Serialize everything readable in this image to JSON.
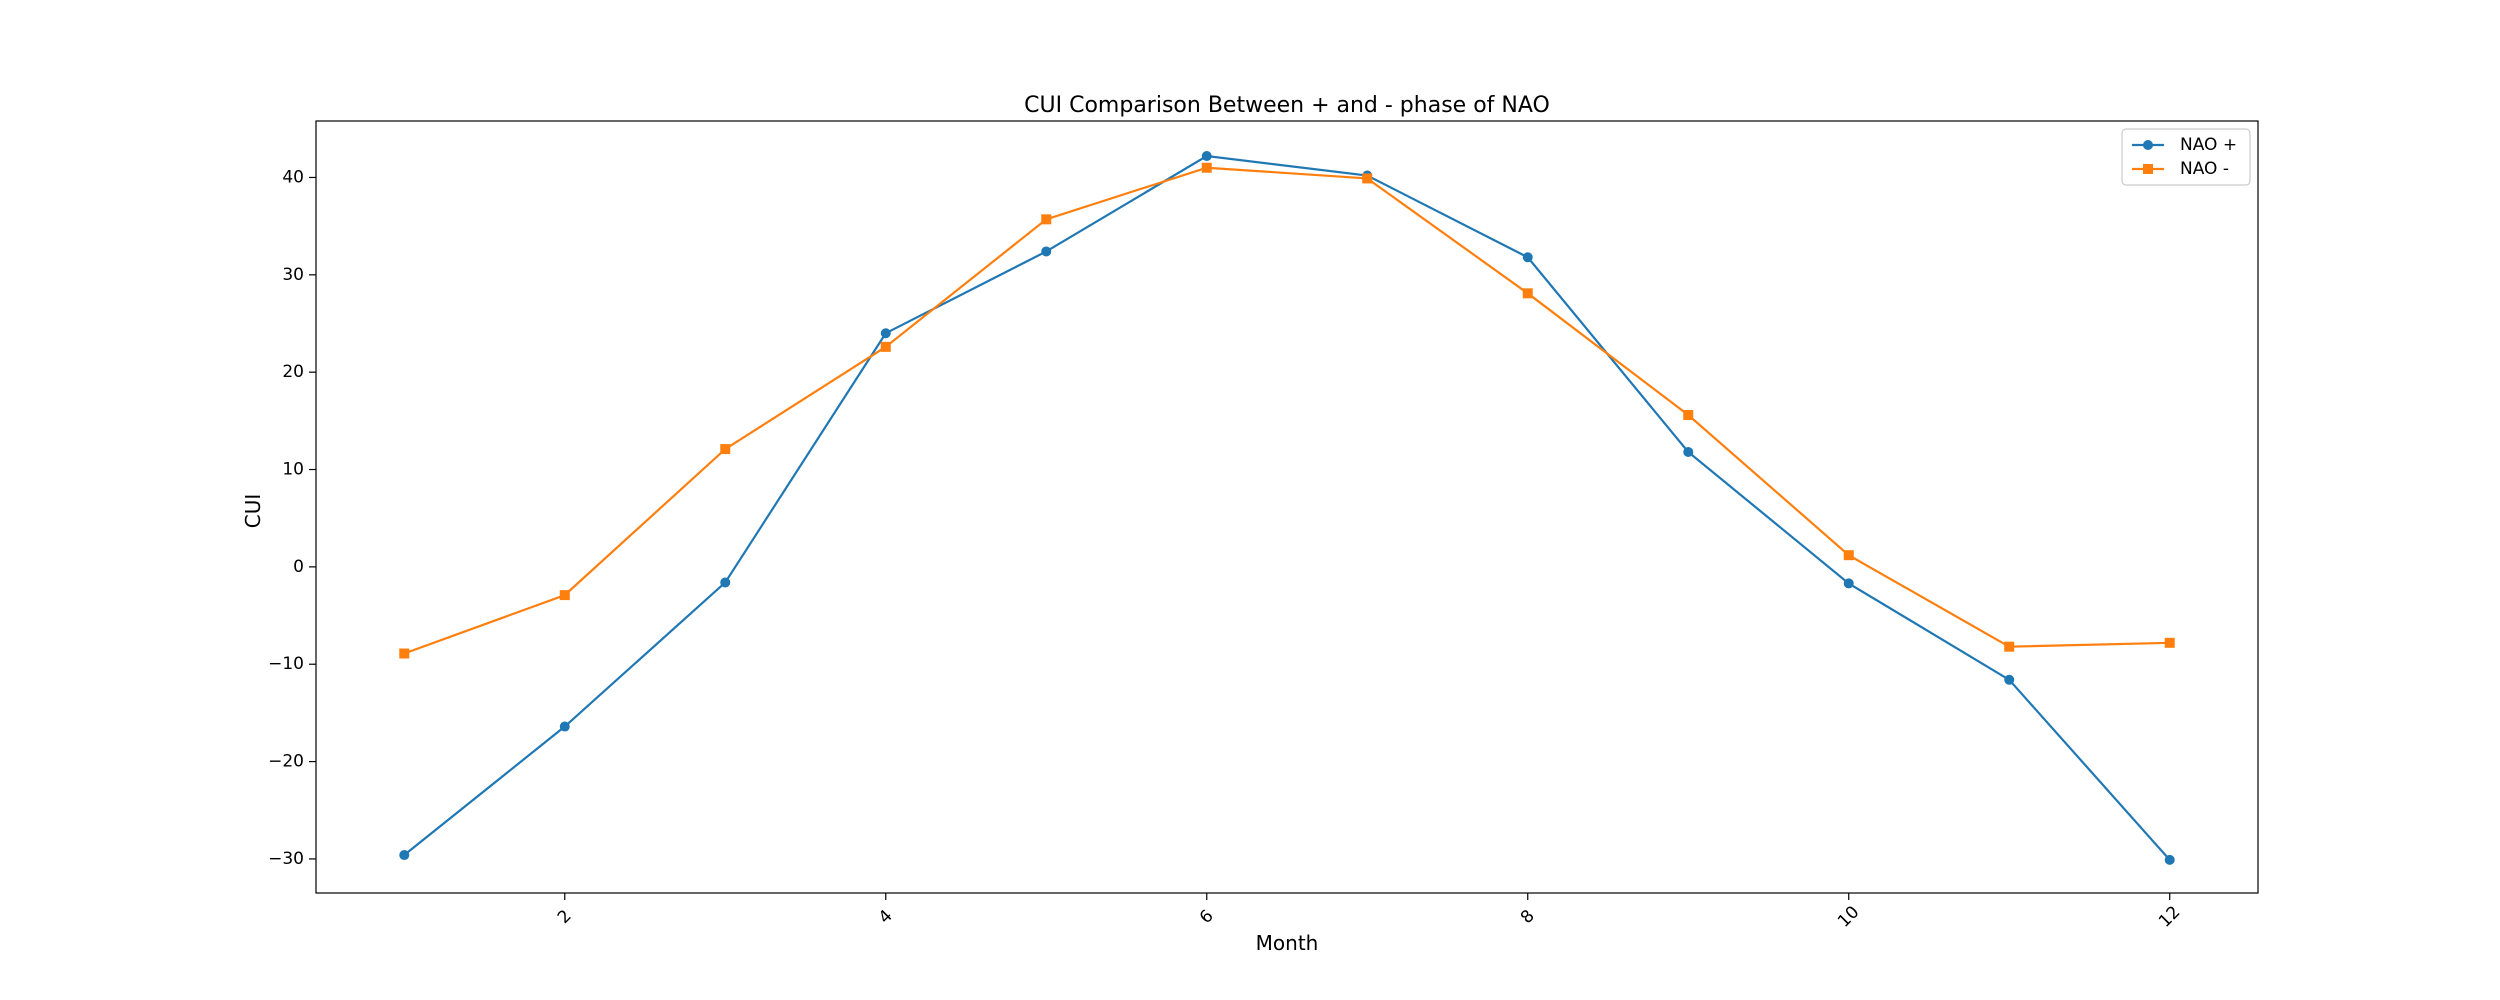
{
  "chart_data": {
    "type": "line",
    "title": "CUI Comparison Between + and - phase of NAO",
    "xlabel": "Month",
    "ylabel": "CUI",
    "x": [
      1,
      2,
      3,
      4,
      5,
      6,
      7,
      8,
      9,
      10,
      11,
      12
    ],
    "xlim": [
      0.45,
      12.55
    ],
    "ylim": [
      -33.5,
      45.8
    ],
    "xticks": [
      2,
      4,
      6,
      8,
      10,
      12
    ],
    "xtick_labels": [
      "2",
      "4",
      "6",
      "8",
      "10",
      "12"
    ],
    "xtick_rotation": -45,
    "yticks": [
      -30,
      -20,
      -10,
      0,
      10,
      20,
      30,
      40
    ],
    "ytick_labels": [
      "−30",
      "−20",
      "−10",
      "0",
      "10",
      "20",
      "30",
      "40"
    ],
    "grid": false,
    "legend_position": "top-right",
    "series": [
      {
        "name": "NAO +",
        "color": "#1f77b4",
        "marker": "circle",
        "values": [
          -29.6,
          -16.4,
          -1.6,
          24.0,
          32.4,
          42.2,
          40.2,
          31.8,
          11.8,
          -1.7,
          -11.6,
          -30.1
        ]
      },
      {
        "name": "NAO -",
        "color": "#ff7f0e",
        "marker": "square",
        "values": [
          -8.9,
          -2.9,
          12.1,
          22.6,
          35.7,
          41.0,
          39.9,
          28.1,
          15.6,
          1.2,
          -8.2,
          -7.8
        ]
      }
    ]
  }
}
